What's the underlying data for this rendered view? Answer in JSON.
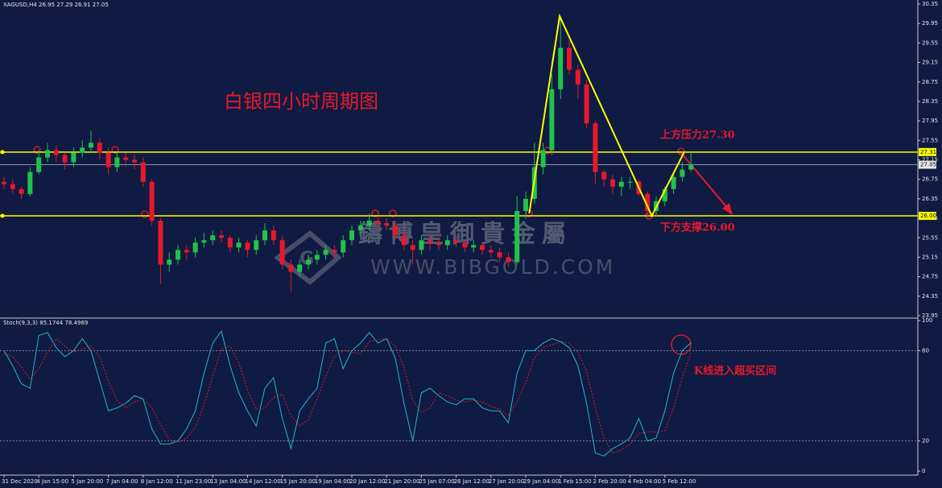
{
  "chart_data": [
    {
      "type": "candlestick",
      "title": "XAGUSD,H4  26.95 27.29 26.91 27.05",
      "open": [
        26.7,
        26.65,
        26.55,
        26.45,
        26.9,
        27.2,
        27.35,
        27.25,
        27.1,
        27.3,
        27.4,
        27.5,
        27.3,
        27.0,
        27.2,
        27.15,
        27.1,
        26.7,
        25.9,
        25.0,
        25.1,
        25.3,
        25.25,
        25.45,
        25.5,
        25.6,
        25.55,
        25.35,
        25.45,
        25.3,
        25.5,
        25.7,
        25.5,
        25.0,
        24.85,
        25.0,
        25.1,
        25.2,
        25.3,
        25.25,
        25.5,
        25.7,
        25.8,
        25.9,
        25.85,
        25.8,
        25.6,
        25.4,
        25.3,
        25.5,
        25.45,
        25.4,
        25.5,
        25.45,
        25.35,
        25.4,
        25.3,
        25.25,
        25.15,
        25.05,
        26.1,
        26.35,
        27.0,
        27.35,
        28.6,
        29.45,
        29.0,
        28.7,
        27.9,
        26.9,
        26.75,
        26.6,
        26.7,
        26.7,
        26.45,
        26.1,
        26.3,
        26.55,
        26.8,
        26.95
      ],
      "high": [
        26.8,
        26.75,
        26.6,
        27.0,
        27.35,
        27.5,
        27.45,
        27.3,
        27.4,
        27.55,
        27.75,
        27.6,
        27.4,
        27.3,
        27.3,
        27.25,
        27.2,
        26.75,
        25.95,
        25.25,
        25.4,
        25.4,
        25.55,
        25.65,
        25.7,
        25.7,
        25.6,
        25.55,
        25.5,
        25.6,
        25.85,
        25.8,
        25.6,
        25.1,
        25.1,
        25.2,
        25.3,
        25.4,
        25.4,
        25.6,
        25.8,
        25.9,
        26.05,
        26.0,
        25.95,
        25.9,
        25.7,
        25.5,
        25.6,
        25.6,
        25.55,
        25.6,
        25.6,
        25.5,
        25.5,
        25.45,
        25.4,
        25.35,
        25.25,
        26.4,
        26.5,
        27.5,
        27.5,
        28.9,
        30.1,
        29.6,
        29.1,
        28.8,
        27.95,
        26.95,
        26.85,
        26.8,
        26.8,
        26.75,
        26.5,
        26.4,
        26.6,
        26.9,
        27.1,
        27.29
      ],
      "low": [
        26.55,
        26.45,
        26.35,
        26.4,
        26.85,
        27.1,
        27.1,
        26.95,
        27.0,
        27.2,
        27.3,
        27.15,
        26.85,
        26.9,
        27.0,
        26.95,
        26.6,
        25.8,
        24.6,
        24.85,
        25.0,
        25.1,
        25.15,
        25.35,
        25.4,
        25.45,
        25.25,
        25.25,
        25.15,
        25.2,
        25.4,
        25.4,
        24.9,
        24.45,
        24.75,
        24.9,
        25.0,
        25.1,
        25.1,
        25.15,
        25.4,
        25.6,
        25.7,
        25.7,
        25.7,
        25.5,
        25.3,
        25.0,
        25.2,
        25.3,
        25.3,
        25.3,
        25.35,
        25.25,
        25.25,
        25.2,
        25.15,
        25.05,
        24.95,
        25.0,
        25.95,
        26.25,
        26.85,
        27.25,
        28.4,
        28.9,
        28.4,
        27.8,
        26.65,
        26.6,
        26.45,
        26.4,
        26.55,
        26.4,
        26.0,
        26.0,
        26.2,
        26.45,
        26.7,
        26.91
      ],
      "close": [
        26.65,
        26.55,
        26.45,
        26.9,
        27.2,
        27.35,
        27.25,
        27.1,
        27.3,
        27.4,
        27.5,
        27.3,
        27.0,
        27.2,
        27.15,
        27.1,
        26.7,
        25.9,
        25.0,
        25.1,
        25.3,
        25.25,
        25.45,
        25.5,
        25.6,
        25.55,
        25.35,
        25.45,
        25.3,
        25.5,
        25.7,
        25.5,
        25.0,
        24.85,
        25.0,
        25.1,
        25.2,
        25.3,
        25.25,
        25.5,
        25.7,
        25.8,
        25.9,
        25.85,
        25.8,
        25.6,
        25.4,
        25.3,
        25.5,
        25.45,
        25.4,
        25.5,
        25.45,
        25.35,
        25.4,
        25.3,
        25.25,
        25.15,
        25.05,
        26.1,
        26.35,
        27.0,
        27.35,
        28.6,
        29.45,
        29.0,
        28.7,
        27.9,
        26.9,
        26.75,
        26.6,
        26.7,
        26.7,
        26.45,
        26.1,
        26.3,
        26.55,
        26.8,
        26.95,
        27.05
      ],
      "up_color": "#22c24a",
      "down_color": "#e8182c",
      "ylim": [
        23.95,
        30.35
      ],
      "yticks": [
        23.95,
        24.35,
        24.75,
        25.15,
        25.55,
        25.95,
        26.35,
        26.75,
        27.15,
        27.55,
        27.95,
        28.35,
        28.75,
        29.15,
        29.55,
        29.95,
        30.35
      ],
      "hlines": [
        27.31,
        {
          "value": 26,
          "label": "26.00"
        }
      ],
      "hline_color": "#ffff00",
      "bid": 27.05,
      "zigzag": {
        "x": [
          60.4,
          63.9,
          74.5,
          78.2
        ],
        "y": [
          26.05,
          30.1,
          26.0,
          27.3
        ]
      },
      "annotations": [
        "白银四小时周期图",
        "上方压力27.30",
        "下方支撑26.00"
      ],
      "watermark": [
        "鑄博皇御貴金屬",
        "WWW.BIBGOLD.COM"
      ]
    },
    {
      "type": "line",
      "title": "Stoch(9,3,3) 85.1744 78.4969",
      "categories": [
        "31 Dec 2020",
        null,
        null,
        null,
        "4 Jan 15:00",
        null,
        null,
        null,
        "5 Jan 20:00",
        null,
        null,
        null,
        "7 Jan 04:00",
        null,
        null,
        null,
        "8 Jan 12:00",
        null,
        null,
        null,
        "11 Jan 23:00",
        null,
        null,
        null,
        "13 Jan 04:00",
        null,
        null,
        null,
        "14 Jan 12:00",
        null,
        null,
        null,
        "15 Jan 20:00",
        null,
        null,
        null,
        "19 Jan 04:00",
        null,
        null,
        null,
        "20 Jan 12:00",
        null,
        null,
        null,
        "21 Jan 20:00",
        null,
        null,
        null,
        "25 Jan 07:00",
        null,
        null,
        null,
        "26 Jan 12:00",
        null,
        null,
        null,
        "27 Jan 20:00",
        null,
        null,
        null,
        "29 Jan 04:00",
        null,
        null,
        null,
        "1 Feb 15:00",
        null,
        null,
        null,
        "2 Feb 20:00",
        null,
        null,
        null,
        "4 Feb 04:00",
        null,
        null,
        null,
        "5 Feb 12:00",
        null,
        null,
        null
      ],
      "series": [
        {
          "color": "#22b8c8",
          "values": [
            80,
            70,
            58,
            55,
            90,
            92,
            82,
            76,
            80,
            88,
            80,
            60,
            40,
            42,
            45,
            50,
            48,
            28,
            18,
            18,
            20,
            28,
            40,
            65,
            85,
            93,
            70,
            52,
            40,
            30,
            55,
            62,
            35,
            15,
            40,
            48,
            55,
            85,
            88,
            68,
            80,
            85,
            92,
            85,
            88,
            75,
            45,
            20,
            52,
            55,
            50,
            46,
            44,
            48,
            48,
            42,
            40,
            40,
            32,
            65,
            80,
            80,
            85,
            88,
            86,
            82,
            70,
            45,
            12,
            10,
            15,
            18,
            22,
            35,
            20,
            22,
            40,
            65,
            80,
            85.1744
          ]
        },
        {
          "color": "#e8182c",
          "dashed": true,
          "values": [
            78,
            76,
            69,
            61,
            68,
            79,
            88,
            83,
            79,
            81,
            83,
            76,
            60,
            47,
            42,
            46,
            48,
            42,
            31,
            21,
            19,
            22,
            29,
            44,
            63,
            81,
            83,
            72,
            54,
            41,
            42,
            49,
            51,
            37,
            30,
            34,
            48,
            63,
            76,
            80,
            79,
            78,
            86,
            87,
            88,
            83,
            69,
            47,
            39,
            42,
            52,
            50,
            47,
            46,
            47,
            46,
            43,
            41,
            37,
            46,
            59,
            75,
            82,
            84,
            86,
            85,
            79,
            66,
            42,
            22,
            12,
            14,
            18,
            25,
            26,
            26,
            27,
            42,
            62,
            78.4969
          ]
        }
      ],
      "levels": [
        20,
        80
      ],
      "ylim": [
        0,
        100
      ],
      "yticks": [
        0,
        20,
        80,
        100
      ],
      "annotations": [
        "K线进入超买区间"
      ]
    }
  ]
}
